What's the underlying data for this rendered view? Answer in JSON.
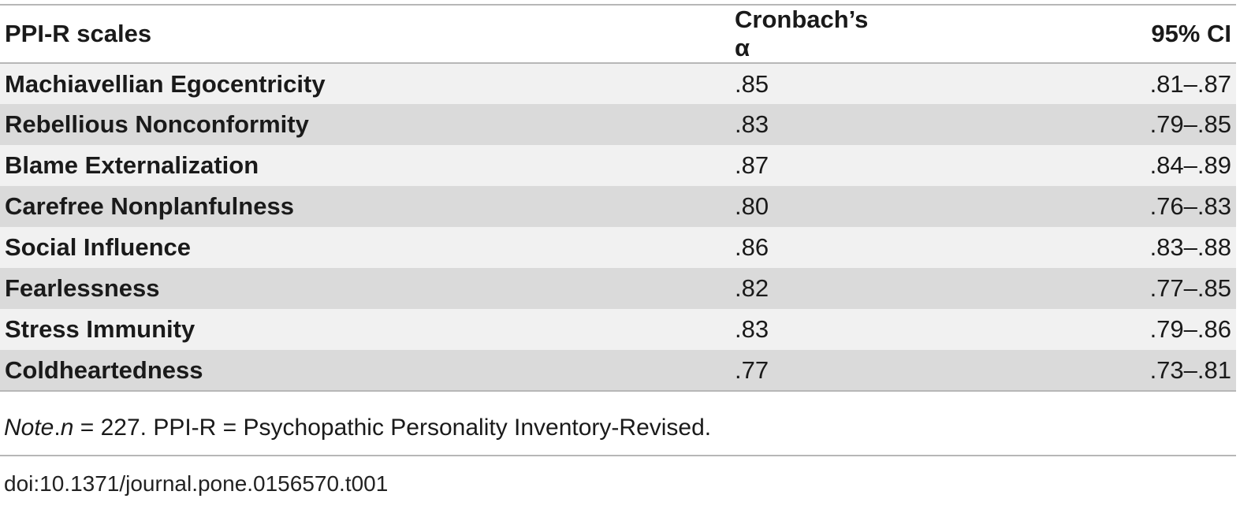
{
  "table": {
    "headers": {
      "scale": "PPI-R scales",
      "alpha": "Cronbach’s α",
      "ci": "95% CI"
    },
    "rows": [
      {
        "scale": "Machiavellian Egocentricity",
        "alpha": ".85",
        "ci": ".81–.87"
      },
      {
        "scale": "Rebellious Nonconformity",
        "alpha": ".83",
        "ci": ".79–.85"
      },
      {
        "scale": "Blame Externalization",
        "alpha": ".87",
        "ci": ".84–.89"
      },
      {
        "scale": "Carefree Nonplanfulness",
        "alpha": ".80",
        "ci": ".76–.83"
      },
      {
        "scale": "Social Influence",
        "alpha": ".86",
        "ci": ".83–.88"
      },
      {
        "scale": "Fearlessness",
        "alpha": ".82",
        "ci": ".77–.85"
      },
      {
        "scale": "Stress Immunity",
        "alpha": ".83",
        "ci": ".79–.86"
      },
      {
        "scale": "Coldheartedness",
        "alpha": ".77",
        "ci": ".73–.81"
      }
    ]
  },
  "note": {
    "label": "Note",
    "n_label": "n",
    "text": " = 227. PPI-R = Psychopathic Personality Inventory-Revised."
  },
  "doi": "doi:10.1371/journal.pone.0156570.t001",
  "colors": {
    "row_light": "#f1f1f1",
    "row_dark": "#dadada",
    "rule": "#b7b7b7"
  }
}
